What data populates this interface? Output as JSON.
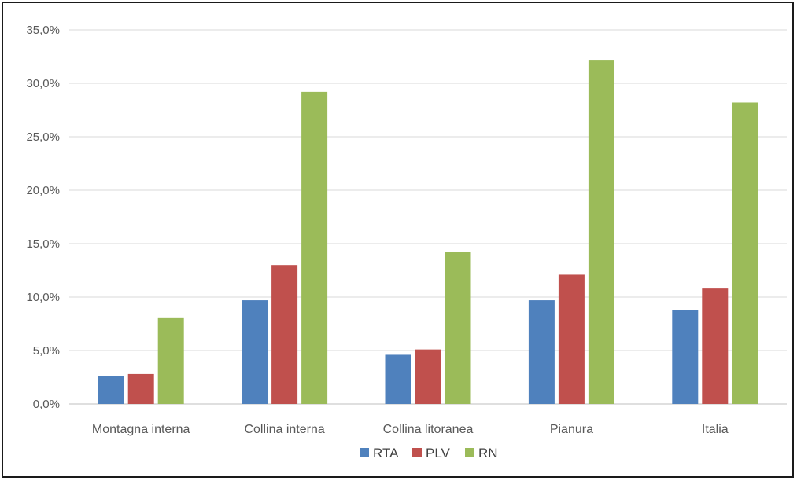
{
  "chart_data": {
    "type": "bar",
    "title": "",
    "xlabel": "",
    "ylabel": "",
    "categories": [
      "Montagna interna",
      "Collina interna",
      "Collina litoranea",
      "Pianura",
      "Italia"
    ],
    "series": [
      {
        "name": "RTA",
        "color": "#4f81bd",
        "values": [
          2.6,
          9.7,
          4.6,
          9.7,
          8.8
        ]
      },
      {
        "name": "PLV",
        "color": "#c0504d",
        "values": [
          2.8,
          13.0,
          5.1,
          12.1,
          10.8
        ]
      },
      {
        "name": "RN",
        "color": "#9bbb59",
        "values": [
          8.1,
          29.2,
          14.2,
          32.2,
          28.2
        ]
      }
    ],
    "ylim": [
      0,
      35
    ],
    "yticks": [
      0,
      5,
      10,
      15,
      20,
      25,
      30,
      35
    ],
    "ytick_labels": [
      "0,0%",
      "5,0%",
      "10,0%",
      "15,0%",
      "20,0%",
      "25,0%",
      "30,0%",
      "35,0%"
    ],
    "grid": true,
    "legend_position": "bottom-center",
    "gridline_color": "#d9d9d9",
    "axis_color": "#bfbfbf"
  }
}
